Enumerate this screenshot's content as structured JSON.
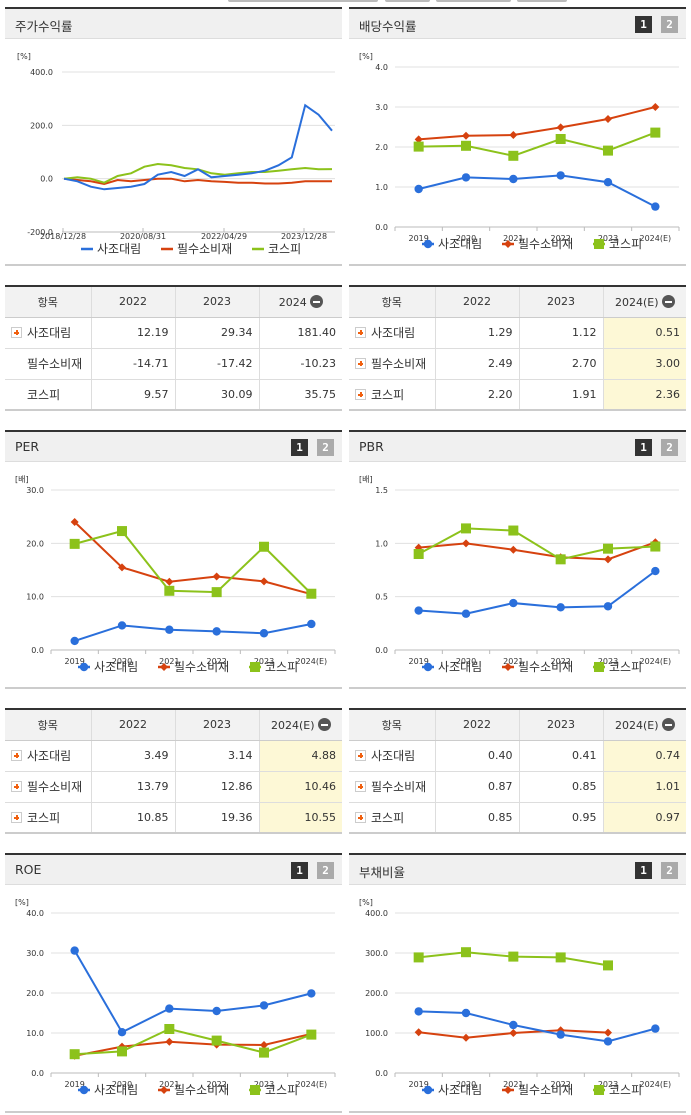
{
  "colors": {
    "company": "#2a6fdb",
    "sector": "#d6420f",
    "kospi": "#8cc21b",
    "grid": "#e0e0e0",
    "estimate_bg": "#fdf8d6"
  },
  "legend": {
    "company": "사조대림",
    "sector": "필수소비재",
    "kospi": "코스피"
  },
  "pager": {
    "page1": "1",
    "page2": "2"
  },
  "panels": {
    "stock_return": {
      "title": "주가수익률",
      "unit": "[%]"
    },
    "dividend": {
      "title": "배당수익률",
      "unit": "[%]"
    },
    "per": {
      "title": "PER",
      "unit": "[배]"
    },
    "pbr": {
      "title": "PBR",
      "unit": "[배]"
    },
    "roe": {
      "title": "ROE",
      "unit": "[%]"
    },
    "debt": {
      "title": "부채비율",
      "unit": "[%]"
    }
  },
  "tables": {
    "stock_return": {
      "headers": [
        "항목",
        "2022",
        "2023",
        "2024"
      ],
      "rows": [
        {
          "name": "사조대림",
          "expand": true,
          "values": [
            "12.19",
            "29.34",
            "181.40"
          ]
        },
        {
          "name": "필수소비재",
          "expand": false,
          "values": [
            "-14.71",
            "-17.42",
            "-10.23"
          ]
        },
        {
          "name": "코스피",
          "expand": false,
          "values": [
            "9.57",
            "30.09",
            "35.75"
          ]
        }
      ]
    },
    "dividend": {
      "headers": [
        "항목",
        "2022",
        "2023",
        "2024(E)"
      ],
      "rows": [
        {
          "name": "사조대림",
          "expand": true,
          "values": [
            "1.29",
            "1.12",
            "0.51"
          ]
        },
        {
          "name": "필수소비재",
          "expand": true,
          "values": [
            "2.49",
            "2.70",
            "3.00"
          ]
        },
        {
          "name": "코스피",
          "expand": true,
          "values": [
            "2.20",
            "1.91",
            "2.36"
          ]
        }
      ]
    },
    "per": {
      "headers": [
        "항목",
        "2022",
        "2023",
        "2024(E)"
      ],
      "rows": [
        {
          "name": "사조대림",
          "expand": true,
          "values": [
            "3.49",
            "3.14",
            "4.88"
          ]
        },
        {
          "name": "필수소비재",
          "expand": true,
          "values": [
            "13.79",
            "12.86",
            "10.46"
          ]
        },
        {
          "name": "코스피",
          "expand": true,
          "values": [
            "10.85",
            "19.36",
            "10.55"
          ]
        }
      ]
    },
    "pbr": {
      "headers": [
        "항목",
        "2022",
        "2023",
        "2024(E)"
      ],
      "rows": [
        {
          "name": "사조대림",
          "expand": true,
          "values": [
            "0.40",
            "0.41",
            "0.74"
          ]
        },
        {
          "name": "필수소비재",
          "expand": true,
          "values": [
            "0.87",
            "0.85",
            "1.01"
          ]
        },
        {
          "name": "코스피",
          "expand": true,
          "values": [
            "0.85",
            "0.95",
            "0.97"
          ]
        }
      ]
    }
  },
  "chart_data": [
    {
      "id": "stock_return",
      "type": "line",
      "title": "주가수익률",
      "ylabel": "[%]",
      "ylim": [
        -200,
        400
      ],
      "yticks": [
        "400.0",
        "200.0",
        "0.0",
        "-200.0"
      ],
      "x_tick_labels": [
        "2018/12/28",
        "2020/08/31",
        "2022/04/29",
        "2023/12/28"
      ],
      "x": [
        "2018/12",
        "2019/06",
        "2019/12",
        "2020/06",
        "2020/08",
        "2020/12",
        "2021/03",
        "2021/06",
        "2021/09",
        "2021/12",
        "2022/04",
        "2022/07",
        "2022/10",
        "2023/01",
        "2023/06",
        "2023/12",
        "2024/03",
        "2024/06",
        "2024/08",
        "2024/09",
        "2024/10"
      ],
      "series": [
        {
          "name": "사조대림",
          "values": [
            0,
            -10,
            -30,
            -40,
            -35,
            -30,
            -20,
            15,
            25,
            10,
            35,
            5,
            10,
            15,
            20,
            30,
            50,
            80,
            275,
            240,
            180
          ]
        },
        {
          "name": "필수소비재",
          "values": [
            0,
            -5,
            -10,
            -20,
            -5,
            -10,
            -5,
            0,
            0,
            -10,
            -5,
            -10,
            -12,
            -15,
            -15,
            -18,
            -18,
            -15,
            -10,
            -10,
            -10
          ]
        },
        {
          "name": "코스피",
          "values": [
            0,
            5,
            0,
            -15,
            10,
            20,
            45,
            55,
            50,
            40,
            35,
            20,
            15,
            20,
            25,
            25,
            30,
            35,
            40,
            35,
            36
          ]
        }
      ],
      "grid": true,
      "legend_position": "bottom"
    },
    {
      "id": "dividend",
      "type": "line",
      "title": "배당수익률",
      "ylabel": "[%]",
      "ylim": [
        0,
        4
      ],
      "yticks": [
        "4.0",
        "3.0",
        "2.0",
        "1.0",
        "0.0"
      ],
      "categories": [
        "2019",
        "2020",
        "2021",
        "2022",
        "2023",
        "2024(E)"
      ],
      "series": [
        {
          "name": "사조대림",
          "values": [
            0.95,
            1.24,
            1.2,
            1.29,
            1.12,
            0.51
          ]
        },
        {
          "name": "필수소비재",
          "values": [
            2.19,
            2.28,
            2.3,
            2.49,
            2.7,
            3.0
          ]
        },
        {
          "name": "코스피",
          "values": [
            2.01,
            2.03,
            1.78,
            2.2,
            1.91,
            2.36
          ]
        }
      ],
      "grid": true,
      "legend_position": "bottom"
    },
    {
      "id": "per",
      "type": "line",
      "title": "PER",
      "ylabel": "[배]",
      "ylim": [
        0,
        30
      ],
      "yticks": [
        "30.0",
        "20.0",
        "10.0",
        "0.0"
      ],
      "categories": [
        "2019",
        "2020",
        "2021",
        "2022",
        "2023",
        "2024(E)"
      ],
      "series": [
        {
          "name": "사조대림",
          "values": [
            1.7,
            4.6,
            3.8,
            3.49,
            3.14,
            4.88
          ]
        },
        {
          "name": "필수소비재",
          "values": [
            24.0,
            15.5,
            12.8,
            13.79,
            12.86,
            10.46
          ]
        },
        {
          "name": "코스피",
          "values": [
            19.9,
            22.3,
            11.1,
            10.85,
            19.36,
            10.55
          ]
        }
      ],
      "grid": true,
      "legend_position": "bottom"
    },
    {
      "id": "pbr",
      "type": "line",
      "title": "PBR",
      "ylabel": "[배]",
      "ylim": [
        0,
        1.5
      ],
      "yticks": [
        "1.5",
        "1.0",
        "0.5",
        "0.0"
      ],
      "categories": [
        "2019",
        "2020",
        "2021",
        "2022",
        "2023",
        "2024(E)"
      ],
      "series": [
        {
          "name": "사조대림",
          "values": [
            0.37,
            0.34,
            0.44,
            0.4,
            0.41,
            0.74
          ]
        },
        {
          "name": "필수소비재",
          "values": [
            0.96,
            1.0,
            0.94,
            0.87,
            0.85,
            1.01
          ]
        },
        {
          "name": "코스피",
          "values": [
            0.9,
            1.14,
            1.12,
            0.85,
            0.95,
            0.97
          ]
        }
      ],
      "grid": true,
      "legend_position": "bottom"
    },
    {
      "id": "roe",
      "type": "line",
      "title": "ROE",
      "ylabel": "[%]",
      "ylim": [
        0,
        40
      ],
      "yticks": [
        "40.0",
        "30.0",
        "20.0",
        "10.0",
        "0.0"
      ],
      "categories": [
        "2019",
        "2020",
        "2021",
        "2022",
        "2023",
        "2024(E)"
      ],
      "series": [
        {
          "name": "사조대림",
          "values": [
            30.6,
            10.2,
            16.1,
            15.5,
            16.9,
            19.9
          ]
        },
        {
          "name": "필수소비재",
          "values": [
            4.3,
            6.6,
            7.8,
            7.1,
            7.0,
            9.8
          ]
        },
        {
          "name": "코스피",
          "values": [
            4.7,
            5.4,
            11.0,
            8.1,
            5.1,
            9.6
          ]
        }
      ],
      "grid": true,
      "legend_position": "bottom"
    },
    {
      "id": "debt",
      "type": "line",
      "title": "부채비율",
      "ylabel": "[%]",
      "ylim": [
        0,
        400
      ],
      "yticks": [
        "400.0",
        "300.0",
        "200.0",
        "100.0",
        "0.0"
      ],
      "categories": [
        "2019",
        "2020",
        "2021",
        "2022",
        "2023",
        "2024(E)"
      ],
      "series": [
        {
          "name": "사조대림",
          "values": [
            154,
            150,
            120,
            96,
            79,
            111
          ]
        },
        {
          "name": "필수소비재",
          "values": [
            102,
            88,
            100,
            107,
            101,
            null
          ]
        },
        {
          "name": "코스피",
          "values": [
            289,
            302,
            291,
            289,
            269,
            null
          ]
        }
      ],
      "grid": true,
      "legend_position": "bottom"
    }
  ]
}
